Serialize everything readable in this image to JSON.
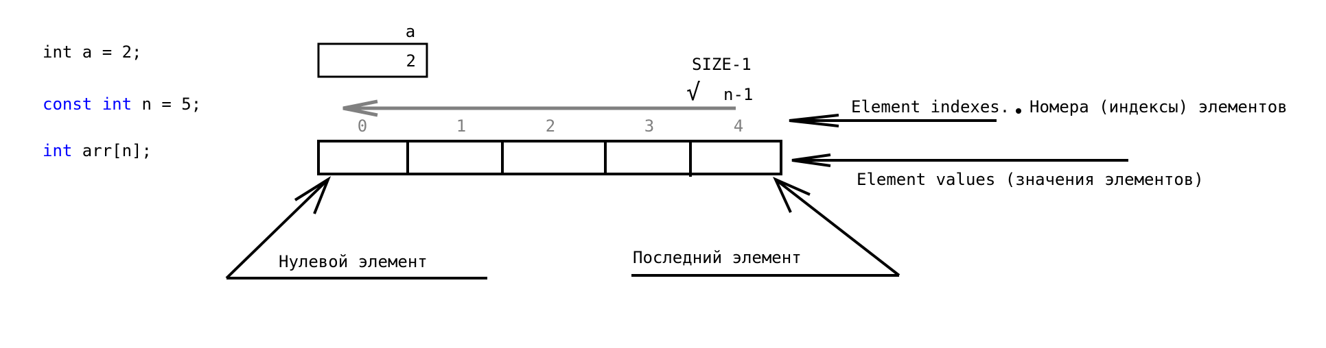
{
  "code": {
    "line1": {
      "text": "int a = 2;"
    },
    "line2": {
      "keyword1": "const",
      "keyword2": "int",
      "rest": " n = 5;"
    },
    "line3": {
      "keyword": "int",
      "rest": " arr[n];"
    }
  },
  "variable": {
    "name": "a",
    "value": "2"
  },
  "indices": [
    "0",
    "1",
    "2",
    "3",
    "4"
  ],
  "labels": {
    "size_minus_one": "SIZE-1",
    "check_mark": "√",
    "n_minus_one": "n-1",
    "element_indexes_en": "Element indexes.",
    "element_indexes_ru": "Номера (индексы) элементов",
    "element_values": "Element values (значения элементов)",
    "zero_element": "Нулевой элемент",
    "last_element": "Последний элемент"
  },
  "colors": {
    "keyword": "#0000ff",
    "text": "#000000",
    "index_text": "#808080",
    "arrow_gray": "#808080",
    "stroke": "#000000"
  }
}
